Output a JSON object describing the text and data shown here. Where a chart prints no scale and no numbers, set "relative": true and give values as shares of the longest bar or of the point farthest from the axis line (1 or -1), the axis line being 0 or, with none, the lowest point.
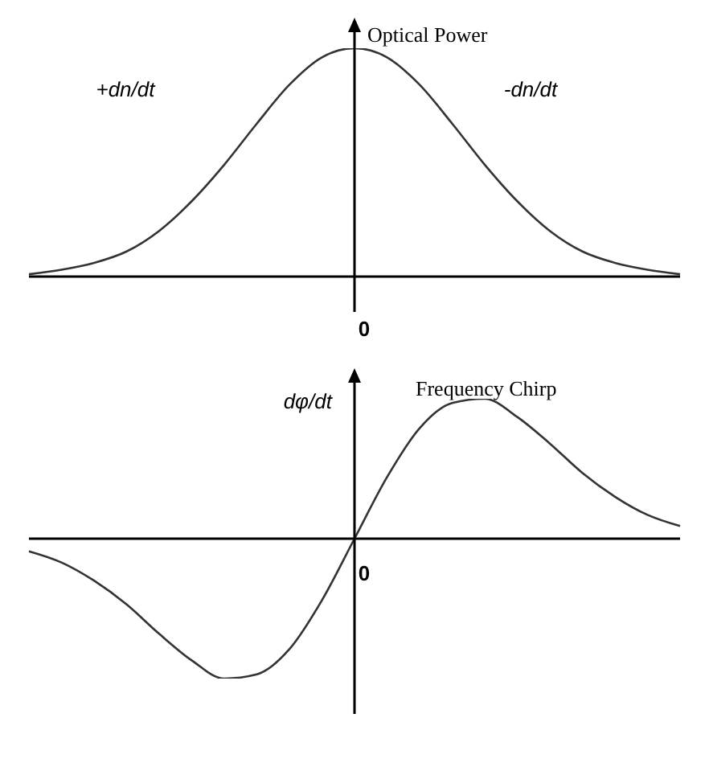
{
  "chart_data": [
    {
      "type": "line",
      "ylabel": "Optical Power",
      "annotations": [
        "0",
        "+dn/dt",
        "-dn/dt"
      ],
      "relative": true,
      "color": "#333333",
      "categories": [
        null,
        null,
        null,
        null,
        null,
        null,
        null,
        null,
        null,
        null,
        null,
        null,
        null,
        null,
        null,
        null,
        null,
        null,
        null,
        null,
        null
      ],
      "values": [
        0.01,
        0.03,
        0.06,
        0.11,
        0.2,
        0.33,
        0.49,
        0.67,
        0.84,
        0.96,
        1,
        0.96,
        0.84,
        0.67,
        0.49,
        0.33,
        0.2,
        0.11,
        0.06,
        0.03,
        0.01
      ]
    },
    {
      "type": "line",
      "title": "Frequency Chirp",
      "ylabel": "dφ/dt",
      "annotations": [
        "0"
      ],
      "relative": true,
      "color": "#333333",
      "categories": [
        null,
        null,
        null,
        null,
        null,
        null,
        null,
        null,
        null,
        null,
        null,
        null,
        null,
        null,
        null,
        null,
        null,
        null,
        null,
        null,
        null
      ],
      "values": [
        -0.09,
        -0.17,
        -0.3,
        -0.47,
        -0.68,
        -0.87,
        -1,
        -0.97,
        -0.79,
        -0.44,
        0,
        0.44,
        0.79,
        0.97,
        1,
        0.87,
        0.68,
        0.47,
        0.3,
        0.17,
        0.09
      ]
    }
  ]
}
